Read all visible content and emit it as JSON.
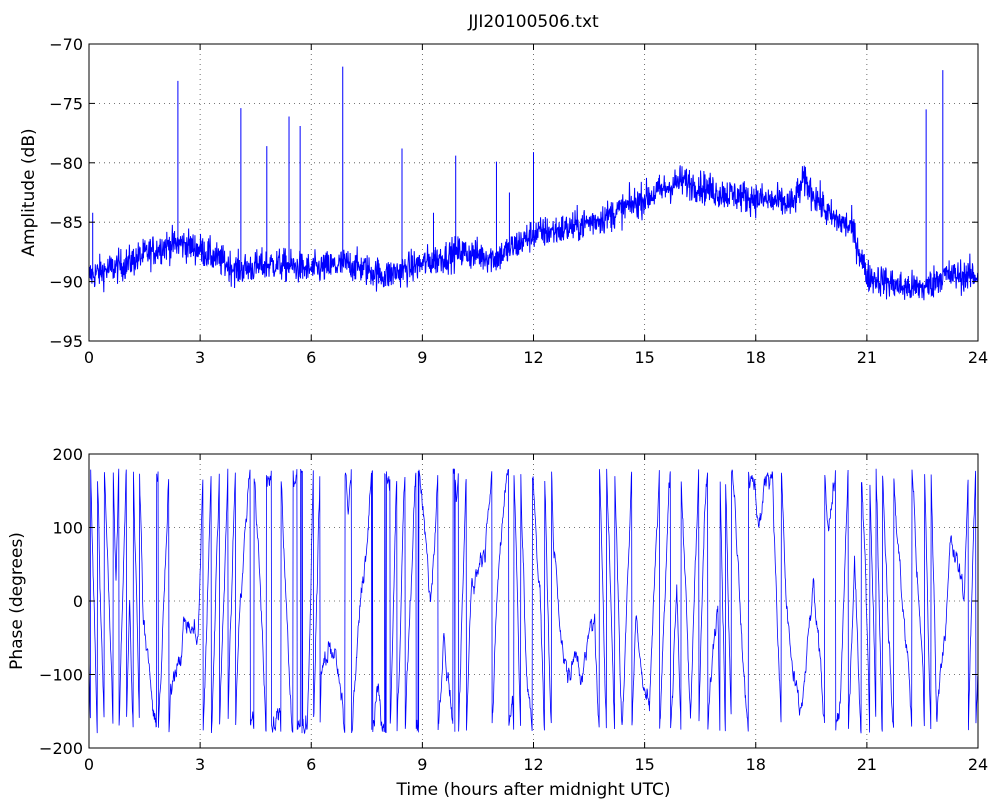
{
  "chart_data": [
    {
      "type": "line",
      "title": "JJI20100506.txt",
      "xlabel": "",
      "ylabel": "Amplitude (dB)",
      "xlim": [
        0,
        24
      ],
      "ylim": [
        -95,
        -70
      ],
      "xticks": [
        0,
        3,
        6,
        9,
        12,
        15,
        18,
        21,
        24
      ],
      "yticks": [
        -95,
        -90,
        -85,
        -80,
        -75,
        -70
      ],
      "grid": true,
      "series": [
        {
          "color": "#0000ff",
          "baseline": {
            "x": [
              0,
              1,
              2,
              2.5,
              3,
              4,
              5,
              6,
              7,
              8,
              9,
              10,
              11,
              12,
              13,
              14,
              15,
              16,
              17,
              18,
              19,
              19.3,
              20,
              20.6,
              21,
              22,
              22.6,
              23,
              24
            ],
            "y": [
              -89.5,
              -88.5,
              -87,
              -86.8,
              -87.3,
              -89,
              -88.5,
              -89,
              -88.5,
              -89.5,
              -88.5,
              -87.5,
              -88,
              -86,
              -85.5,
              -84.5,
              -83,
              -81.5,
              -82.5,
              -83,
              -83.5,
              -81.5,
              -84.5,
              -85.5,
              -89.5,
              -90.5,
              -90.5,
              -89.5,
              -89.5
            ]
          },
          "noise_db": 1.5,
          "spikes": [
            {
              "x": 0.1,
              "y": -84.2
            },
            {
              "x": 2.4,
              "y": -73.1
            },
            {
              "x": 4.1,
              "y": -75.4
            },
            {
              "x": 4.8,
              "y": -78.6
            },
            {
              "x": 5.4,
              "y": -76.1
            },
            {
              "x": 5.7,
              "y": -76.9
            },
            {
              "x": 6.85,
              "y": -71.9
            },
            {
              "x": 8.45,
              "y": -78.8
            },
            {
              "x": 9.3,
              "y": -84.2
            },
            {
              "x": 9.9,
              "y": -79.4
            },
            {
              "x": 11.0,
              "y": -79.9
            },
            {
              "x": 11.35,
              "y": -82.5
            },
            {
              "x": 12.0,
              "y": -79.1
            },
            {
              "x": 22.6,
              "y": -75.5
            },
            {
              "x": 23.05,
              "y": -72.2
            }
          ]
        }
      ]
    },
    {
      "type": "line",
      "title": "",
      "xlabel": "Time (hours after midnight UTC)",
      "ylabel": "Phase (degrees)",
      "xlim": [
        0,
        24
      ],
      "ylim": [
        -200,
        200
      ],
      "xticks": [
        0,
        3,
        6,
        9,
        12,
        15,
        18,
        21,
        24
      ],
      "yticks": [
        -200,
        -100,
        0,
        100,
        200
      ],
      "grid": true,
      "series": [
        {
          "color": "#0000ff",
          "wrap_range": [
            -180,
            180
          ],
          "noise_deg": 12
        }
      ]
    }
  ]
}
